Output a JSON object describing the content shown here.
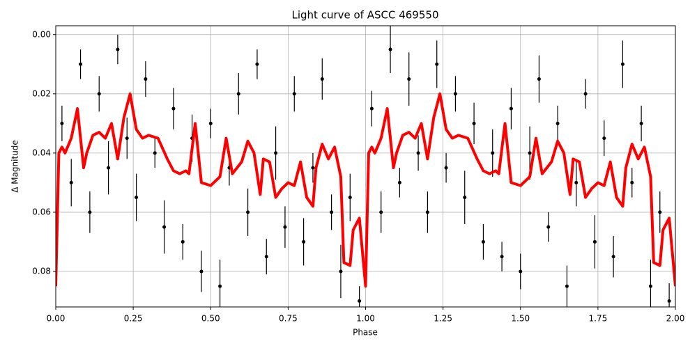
{
  "chart_data": {
    "type": "scatter",
    "title": "Light curve of ASCC 469550",
    "x_label": "Phase",
    "y_label": "Δ Magnitude",
    "xlim": [
      0,
      2
    ],
    "ylim": [
      -0.003,
      0.092
    ],
    "y_inverted": true,
    "grid": true,
    "xticks": [
      {
        "value": 0,
        "label": "0.00"
      },
      {
        "value": 0.25,
        "label": "0.25"
      },
      {
        "value": 0.5,
        "label": "0.50"
      },
      0.75,
      {
        "value": 1,
        "label": "1.00"
      },
      1.25,
      {
        "value": 1.5,
        "label": "1.50"
      },
      1.75,
      {
        "value": 2,
        "label": "2.00"
      }
    ],
    "yticks": [
      {
        "value": 0,
        "label": "0.00"
      },
      0.02,
      0.04,
      0.06,
      0.08
    ],
    "series": [
      {
        "type": "scatter",
        "color": "#000000",
        "x": [
          0.02,
          0.05,
          0.08,
          0.11,
          0.14,
          0.17,
          0.2,
          0.23,
          0.26,
          0.29,
          0.32,
          0.35,
          0.38,
          0.41,
          0.44,
          0.47,
          0.5,
          0.53,
          0.56,
          0.59,
          0.62,
          0.65,
          0.68,
          0.71,
          0.74,
          0.77,
          0.8,
          0.83,
          0.86,
          0.89,
          0.92,
          0.95,
          0.98,
          1.02,
          1.05,
          1.08,
          1.11,
          1.14,
          1.17,
          1.2,
          1.23,
          1.26,
          1.29,
          1.32,
          1.35,
          1.38,
          1.41,
          1.44,
          1.47,
          1.5,
          1.53,
          1.56,
          1.59,
          1.62,
          1.65,
          1.68,
          1.71,
          1.74,
          1.77,
          1.8,
          1.83,
          1.86,
          1.89,
          1.92,
          1.95,
          1.98
        ],
        "values": [
          0.03,
          0.05,
          0.01,
          0.06,
          0.02,
          0.045,
          0.005,
          0.035,
          0.055,
          0.015,
          0.04,
          0.065,
          0.025,
          0.07,
          0.035,
          0.08,
          0.03,
          0.085,
          0.045,
          0.02,
          0.06,
          0.01,
          0.075,
          0.04,
          0.065,
          0.02,
          0.07,
          0.045,
          0.015,
          0.06,
          0.08,
          0.055,
          0.09,
          0.025,
          0.06,
          0.005,
          0.05,
          0.015,
          0.04,
          0.06,
          0.01,
          0.045,
          0.02,
          0.055,
          0.03,
          0.07,
          0.04,
          0.075,
          0.025,
          0.08,
          0.04,
          0.015,
          0.065,
          0.03,
          0.085,
          0.05,
          0.02,
          0.07,
          0.035,
          0.075,
          0.01,
          0.05,
          0.03,
          0.085,
          0.06,
          0.09
        ],
        "errors": [
          0.006,
          0.008,
          0.005,
          0.007,
          0.006,
          0.009,
          0.005,
          0.007,
          0.008,
          0.006,
          0.005,
          0.009,
          0.007,
          0.006,
          0.008,
          0.007,
          0.005,
          0.009,
          0.006,
          0.007,
          0.008,
          0.005,
          0.006,
          0.009,
          0.007,
          0.006,
          0.008,
          0.005,
          0.007,
          0.006,
          0.009,
          0.008,
          0.005,
          0.006,
          0.007,
          0.008,
          0.005,
          0.009,
          0.006,
          0.007,
          0.008,
          0.005,
          0.006,
          0.009,
          0.007,
          0.006,
          0.008,
          0.005,
          0.007,
          0.006,
          0.009,
          0.008,
          0.005,
          0.006,
          0.007,
          0.008,
          0.005,
          0.009,
          0.006,
          0.007,
          0.008,
          0.005,
          0.006,
          0.009,
          0.007,
          0.006
        ]
      },
      {
        "type": "line",
        "color": "#ff0000",
        "x": [
          0,
          0.01,
          0.02,
          0.03,
          0.05,
          0.07,
          0.09,
          0.1,
          0.12,
          0.14,
          0.16,
          0.18,
          0.2,
          0.22,
          0.24,
          0.26,
          0.28,
          0.3,
          0.33,
          0.36,
          0.38,
          0.4,
          0.42,
          0.43,
          0.45,
          0.47,
          0.5,
          0.53,
          0.55,
          0.57,
          0.6,
          0.62,
          0.64,
          0.66,
          0.67,
          0.69,
          0.71,
          0.73,
          0.75,
          0.77,
          0.79,
          0.81,
          0.83,
          0.84,
          0.86,
          0.88,
          0.9,
          0.92,
          0.93,
          0.95,
          0.96,
          0.98,
          1,
          1.01,
          1.02,
          1.03,
          1.05,
          1.07,
          1.09,
          1.1,
          1.12,
          1.14,
          1.16,
          1.18,
          1.2,
          1.22,
          1.24,
          1.26,
          1.28,
          1.3,
          1.33,
          1.36,
          1.38,
          1.4,
          1.42,
          1.43,
          1.45,
          1.47,
          1.5,
          1.53,
          1.55,
          1.57,
          1.6,
          1.62,
          1.64,
          1.66,
          1.67,
          1.69,
          1.71,
          1.73,
          1.75,
          1.77,
          1.79,
          1.81,
          1.83,
          1.84,
          1.86,
          1.88,
          1.9,
          1.92,
          1.93,
          1.95,
          1.96,
          1.98,
          2
        ],
        "values": [
          0.085,
          0.04,
          0.038,
          0.04,
          0.035,
          0.025,
          0.045,
          0.04,
          0.034,
          0.033,
          0.035,
          0.03,
          0.042,
          0.028,
          0.02,
          0.032,
          0.035,
          0.034,
          0.035,
          0.042,
          0.046,
          0.047,
          0.046,
          0.047,
          0.03,
          0.05,
          0.051,
          0.048,
          0.035,
          0.047,
          0.043,
          0.036,
          0.04,
          0.054,
          0.042,
          0.043,
          0.055,
          0.052,
          0.05,
          0.051,
          0.043,
          0.055,
          0.058,
          0.045,
          0.037,
          0.042,
          0.038,
          0.048,
          0.077,
          0.078,
          0.066,
          0.062,
          0.085,
          0.04,
          0.038,
          0.04,
          0.035,
          0.025,
          0.045,
          0.04,
          0.034,
          0.033,
          0.035,
          0.03,
          0.042,
          0.028,
          0.02,
          0.032,
          0.035,
          0.034,
          0.035,
          0.042,
          0.046,
          0.047,
          0.046,
          0.047,
          0.03,
          0.05,
          0.051,
          0.048,
          0.035,
          0.047,
          0.043,
          0.036,
          0.04,
          0.054,
          0.042,
          0.043,
          0.055,
          0.052,
          0.05,
          0.051,
          0.043,
          0.055,
          0.058,
          0.045,
          0.037,
          0.042,
          0.038,
          0.048,
          0.077,
          0.078,
          0.066,
          0.062,
          0.085
        ]
      }
    ]
  }
}
